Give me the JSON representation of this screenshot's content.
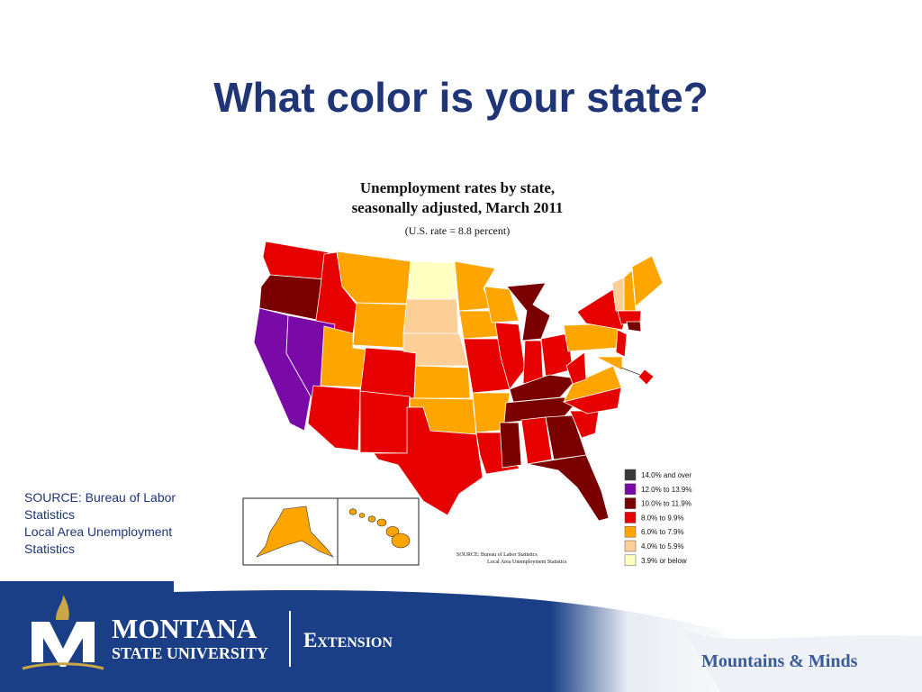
{
  "header": {
    "title": "What color is your state?"
  },
  "map": {
    "title_lines": [
      "Unemployment rates by state,",
      "seasonally adjusted, March 2011"
    ],
    "subtitle": "(U.S. rate = 8.8 percent)",
    "legend": [
      {
        "label": "14.0% and over",
        "color": "#3a3a3a"
      },
      {
        "label": "12.0% to 13.9%",
        "color": "#7a0aa8"
      },
      {
        "label": "10.0% to 11.9%",
        "color": "#7a0000"
      },
      {
        "label": "8.0% to 9.9%",
        "color": "#e60000"
      },
      {
        "label": "6.0% to 7.9%",
        "color": "#ffa500"
      },
      {
        "label": "4.0% to 5.9%",
        "color": "#fccf96"
      },
      {
        "label": "3.9% or below",
        "color": "#ffffc2"
      }
    ],
    "source_lines": [
      "SOURCE:  Bureau of Labor Statistics",
      "Local Area Unemployment Statistics"
    ]
  },
  "source_note": [
    "SOURCE: Bureau of Labor",
    "Statistics",
    "Local Area Unemployment",
    "Statistics"
  ],
  "footer": {
    "brand": "MONTANA",
    "brand_sub": "STATE UNIVERSITY",
    "unit": "Extension",
    "slogan": "Mountains & Minds"
  }
}
